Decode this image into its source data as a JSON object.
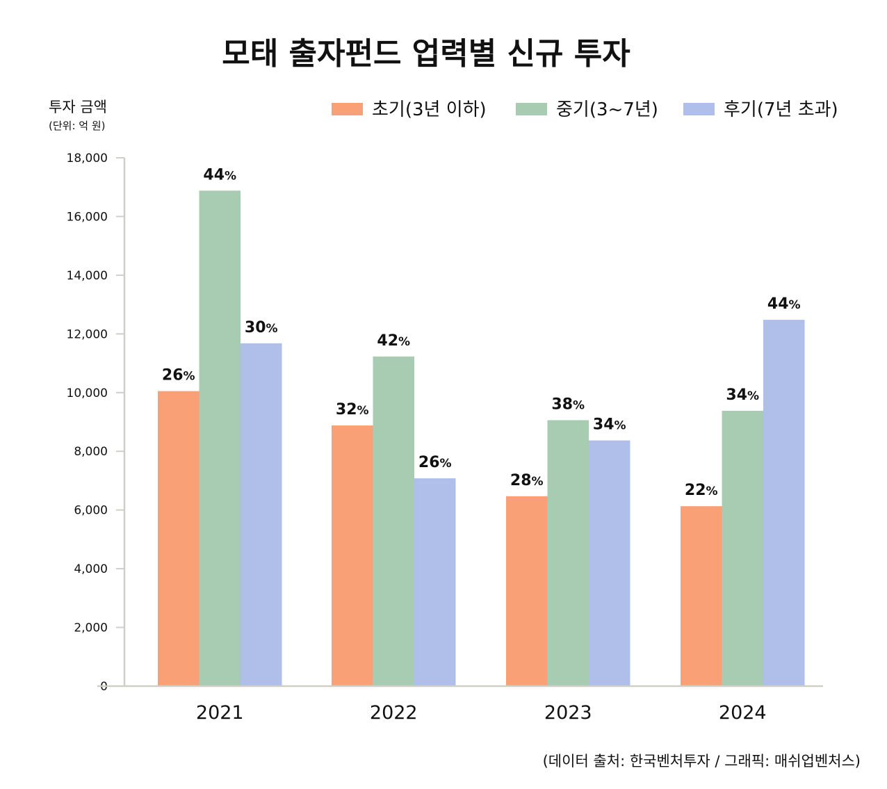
{
  "chart_data": {
    "type": "bar",
    "title": "모태 출자펀드 업력별 신규 투자",
    "ylabel": "투자 금액",
    "yunit": "(단위: 억 원)",
    "categories": [
      "2021",
      "2022",
      "2023",
      "2024"
    ],
    "series": [
      {
        "name": "초기(3년 이하)",
        "color": "#F9A077",
        "values": [
          10050,
          8880,
          6470,
          6130
        ],
        "labels": [
          "26%",
          "32%",
          "28%",
          "22%"
        ]
      },
      {
        "name": "중기(3~7년)",
        "color": "#A8CCB2",
        "values": [
          16880,
          11230,
          9060,
          9380
        ],
        "labels": [
          "44%",
          "42%",
          "38%",
          "34%"
        ]
      },
      {
        "name": "후기(7년 초과)",
        "color": "#AFBFEA",
        "values": [
          11680,
          7080,
          8370,
          12480
        ],
        "labels": [
          "30%",
          "26%",
          "34%",
          "44%"
        ]
      }
    ],
    "ylim": [
      0,
      18000
    ],
    "yticks": [
      "0",
      "2,000",
      "4,000",
      "6,000",
      "8,000",
      "10,000",
      "12,000",
      "14,000",
      "16,000",
      "18,000"
    ],
    "ytick_values": [
      0,
      2000,
      4000,
      6000,
      8000,
      10000,
      12000,
      14000,
      16000,
      18000
    ],
    "grid": false,
    "legend_position": "top-right",
    "source": "(데이터 출처: 한국벤처투자 / 그래픽: 매쉬업벤처스)"
  }
}
